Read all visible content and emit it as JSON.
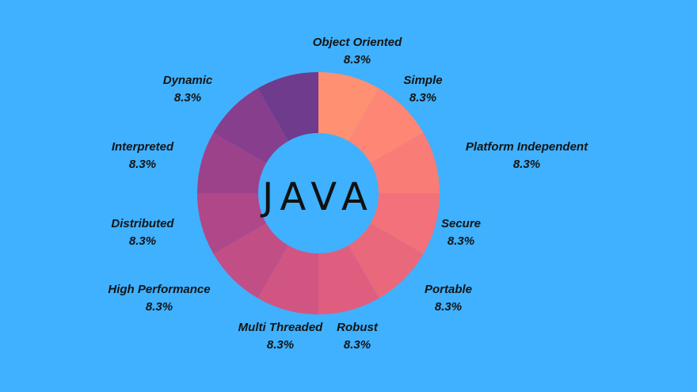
{
  "chart_data": {
    "type": "pie",
    "center_text": "JAVA",
    "slices": [
      {
        "label": "Object Oriented",
        "value": 8.3,
        "value_label": "8.3%",
        "color": "#ff9072"
      },
      {
        "label": "Simple",
        "value": 8.3,
        "value_label": "8.3%",
        "color": "#fe8674"
      },
      {
        "label": "Platform Independent",
        "value": 8.3,
        "value_label": "8.3%",
        "color": "#f97c77"
      },
      {
        "label": "Secure",
        "value": 8.3,
        "value_label": "8.3%",
        "color": "#f3717a"
      },
      {
        "label": "Portable",
        "value": 8.3,
        "value_label": "8.3%",
        "color": "#ea687c"
      },
      {
        "label": "Robust",
        "value": 8.3,
        "value_label": "8.3%",
        "color": "#df5e80"
      },
      {
        "label": "Multi Threaded",
        "value": 8.3,
        "value_label": "8.3%",
        "color": "#d15583"
      },
      {
        "label": "High Performance",
        "value": 8.3,
        "value_label": "8.3%",
        "color": "#c24e86"
      },
      {
        "label": "Distributed",
        "value": 8.3,
        "value_label": "8.3%",
        "color": "#b04789"
      },
      {
        "label": "Interpreted",
        "value": 8.3,
        "value_label": "8.3%",
        "color": "#9c428b"
      },
      {
        "label": "Dynamic",
        "value": 8.3,
        "value_label": "8.3%",
        "color": "#873e8d"
      },
      {
        "label": "",
        "value": 8.3,
        "value_label": "",
        "color": "#6f3b8c"
      }
    ]
  }
}
